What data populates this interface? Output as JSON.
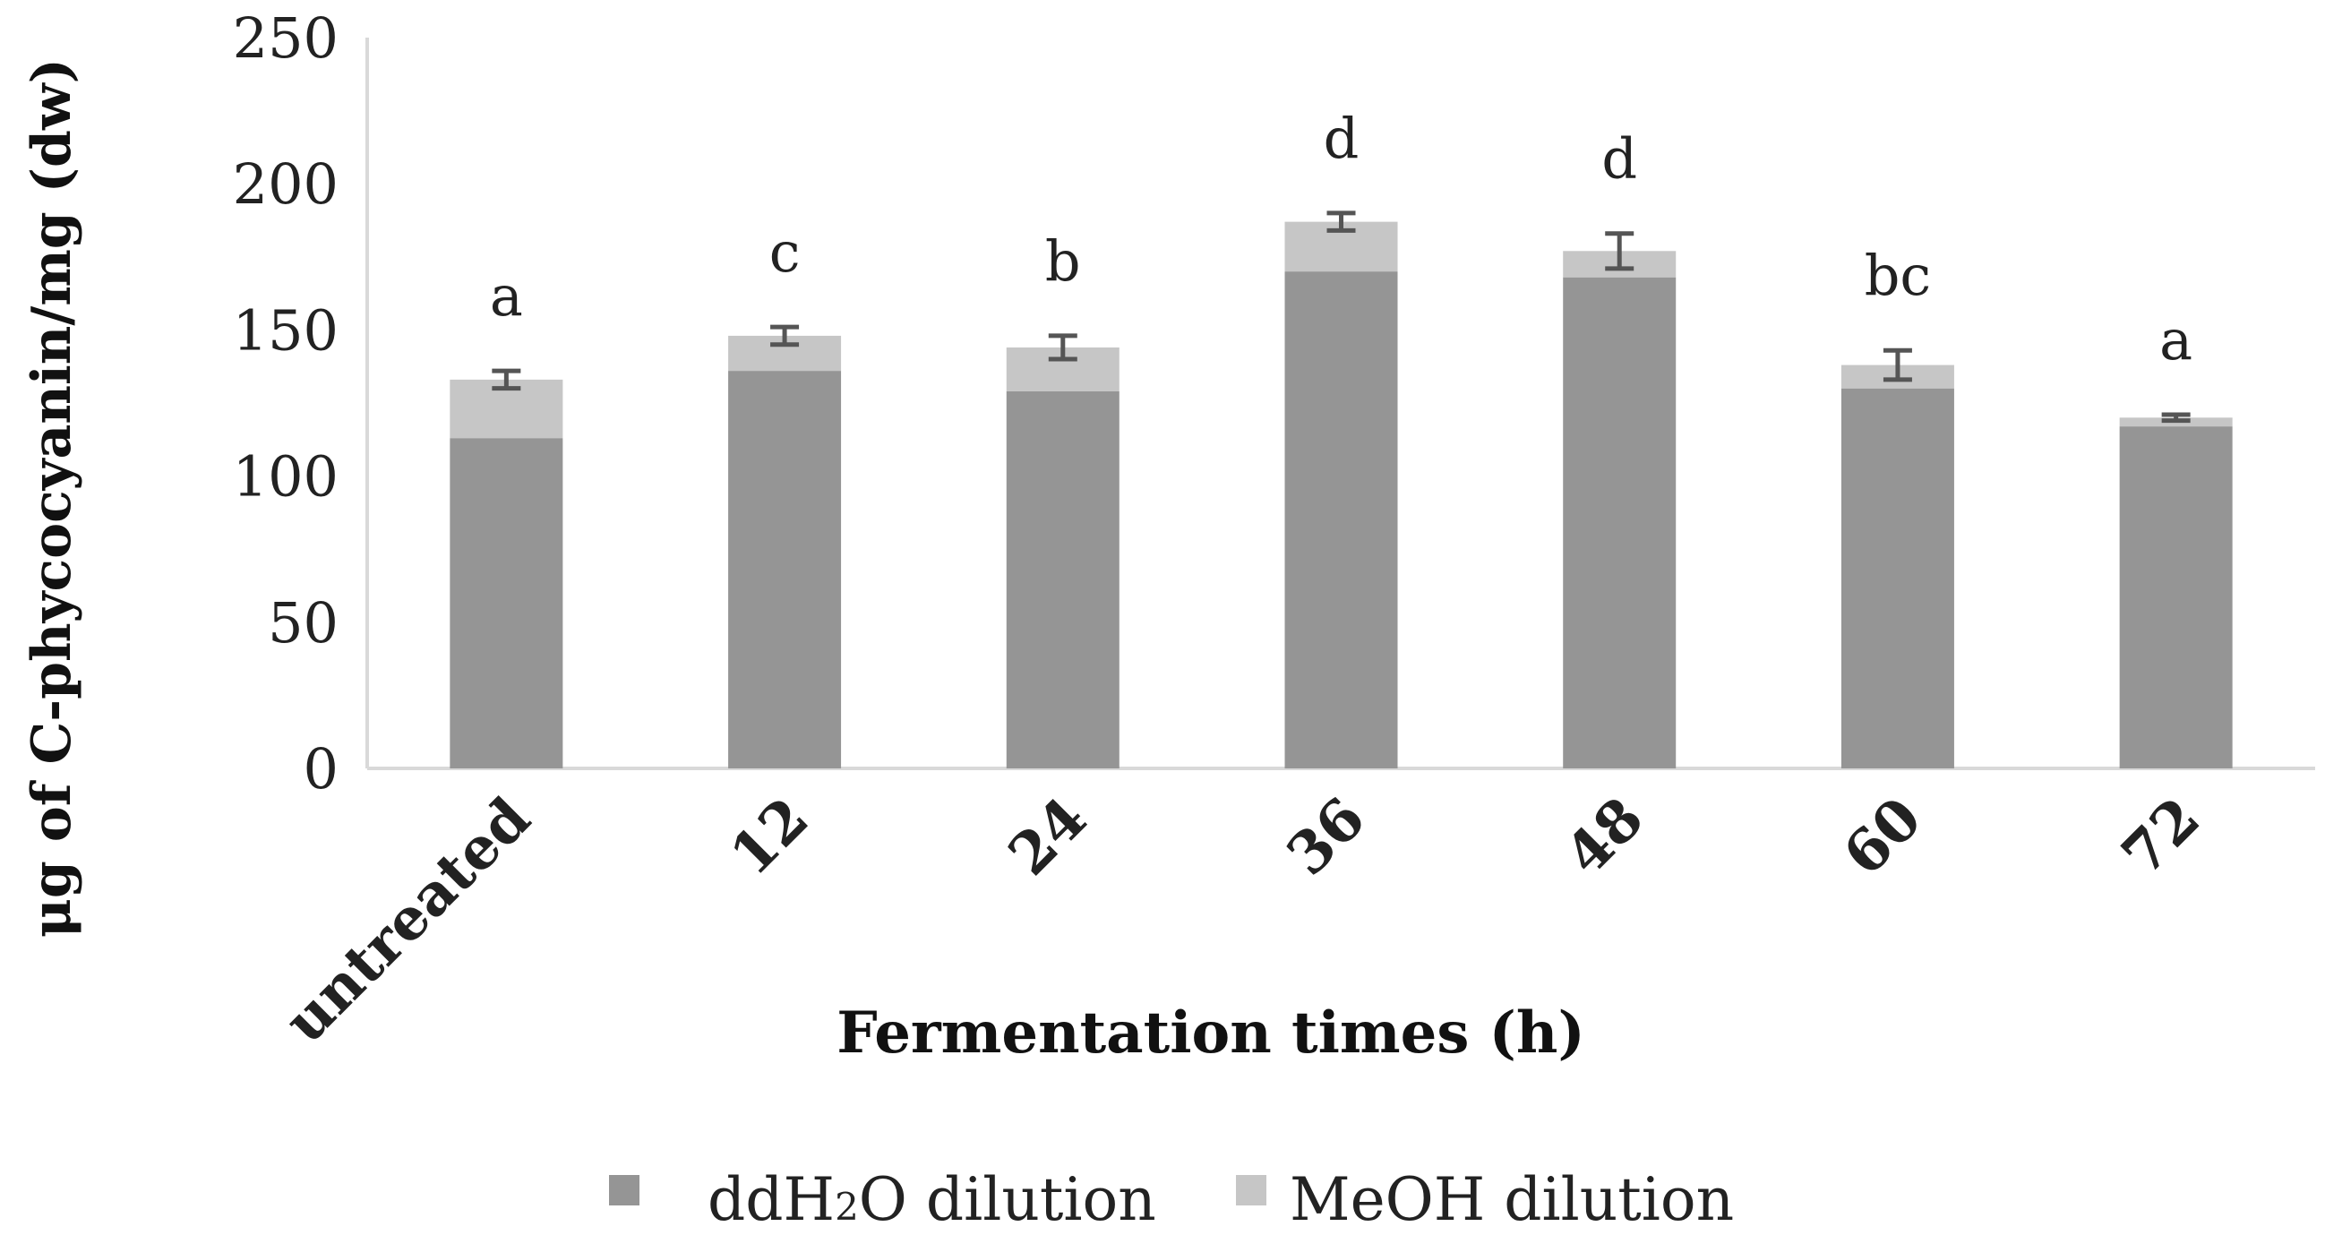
{
  "chart_data": {
    "type": "bar",
    "stacked": true,
    "title": "",
    "xlabel": "Fermentation times (h)",
    "ylabel": "μg of C-phycocyanin/mg (dw)",
    "categories": [
      "untreated",
      "12",
      "24",
      "36",
      "48",
      "60",
      "72"
    ],
    "series": [
      {
        "name": "ddH2O dilution",
        "color": "#959595",
        "values": [
          113,
          136,
          129,
          170,
          168,
          130,
          117
        ]
      },
      {
        "name": "MeOH dilution",
        "color": "#c6c6c6",
        "values": [
          20,
          12,
          15,
          17,
          9,
          8,
          3
        ]
      }
    ],
    "error_bars": [
      3,
      3,
      4,
      3,
      6,
      5,
      1
    ],
    "significance_letters": [
      "a",
      "c",
      "b",
      "d",
      "d",
      "bc",
      "a"
    ],
    "ylim": [
      0,
      250
    ],
    "yticks": [
      0,
      50,
      100,
      150,
      200,
      250
    ],
    "grid": false,
    "legend_position": "bottom",
    "colors": {
      "axis": "#d9d9d9",
      "error_bar": "#555555",
      "text": "#222222"
    }
  },
  "legend": {
    "ddh2o_label_pre": "ddH",
    "ddh2o_label_sub": "2",
    "ddh2o_label_post": "O dilution",
    "meoh_label": "MeOH dilution"
  }
}
